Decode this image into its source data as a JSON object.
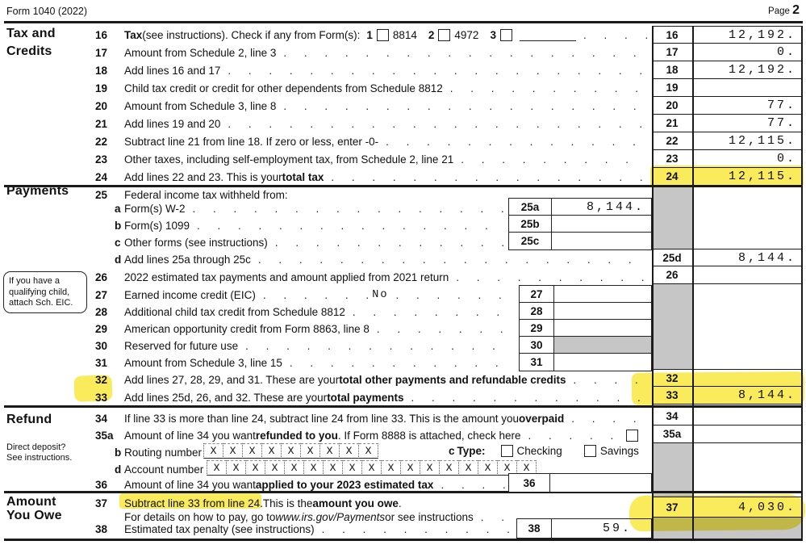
{
  "colors": {
    "highlight": "#f7e425",
    "shade": "#c6c6c6"
  },
  "header": {
    "form": "Form 1040 (2022)",
    "page_word": "Page",
    "page_num": "2"
  },
  "side": {
    "tax1": "Tax and",
    "tax2": "Credits",
    "payments": "Payments",
    "refund": "Refund",
    "owe1": "Amount",
    "owe2": "You Owe",
    "eic_note": "If you have a qualifying child, attach Sch. EIC.",
    "dd1": "Direct deposit?",
    "dd2": "See instructions."
  },
  "rows": {
    "r16": {
      "n": "16",
      "b": "Tax",
      "t": " (see instructions). Check if any from Form(s):",
      "c1": "1",
      "f1": "8814",
      "c2": "2",
      "f2": "4972",
      "c3": "3",
      "rn": "16",
      "rv": "12,192."
    },
    "r17": {
      "n": "17",
      "t": "Amount from Schedule 2, line 3",
      "rn": "17",
      "rv": "0."
    },
    "r18": {
      "n": "18",
      "t": "Add lines 16 and 17",
      "rn": "18",
      "rv": "12,192."
    },
    "r19": {
      "n": "19",
      "t": "Child tax credit or credit for other dependents from Schedule 8812",
      "rn": "19",
      "rv": ""
    },
    "r20": {
      "n": "20",
      "t": "Amount from Schedule 3, line 8",
      "rn": "20",
      "rv": "77."
    },
    "r21": {
      "n": "21",
      "t": "Add lines 19 and 20",
      "rn": "21",
      "rv": "77."
    },
    "r22": {
      "n": "22",
      "t": "Subtract line 21 from line 18. If zero or less, enter -0-",
      "rn": "22",
      "rv": "12,115."
    },
    "r23": {
      "n": "23",
      "t": "Other taxes, including self-employment tax, from Schedule 2, line 21",
      "rn": "23",
      "rv": "0."
    },
    "r24": {
      "n": "24",
      "t": "Add lines 22 and 23. This is your ",
      "b": "total tax",
      "rn": "24",
      "rv": "12,115."
    },
    "r25": {
      "n": "25",
      "t": "Federal income tax withheld from:"
    },
    "r25a": {
      "l": "a",
      "t": "Form(s) W-2",
      "mn": "25a",
      "mv": "8,144."
    },
    "r25b": {
      "l": "b",
      "t": "Form(s) 1099",
      "mn": "25b",
      "mv": ""
    },
    "r25c": {
      "l": "c",
      "t": "Other forms (see instructions)",
      "mn": "25c",
      "mv": ""
    },
    "r25d": {
      "l": "d",
      "t": "Add lines 25a through 25c",
      "rn": "25d",
      "rv": "8,144."
    },
    "r26": {
      "n": "26",
      "t": "2022 estimated tax payments and amount applied from 2021 return",
      "rn": "26",
      "rv": ""
    },
    "r27": {
      "n": "27",
      "t": "Earned income credit (EIC)",
      "note": "No",
      "mn": "27",
      "mv": ""
    },
    "r28": {
      "n": "28",
      "t": "Additional child tax credit from Schedule 8812",
      "mn": "28",
      "mv": ""
    },
    "r29": {
      "n": "29",
      "t": "American opportunity credit from Form 8863, line 8",
      "mn": "29",
      "mv": ""
    },
    "r30": {
      "n": "30",
      "t": "Reserved for future use",
      "mn": "30",
      "mv": ""
    },
    "r31": {
      "n": "31",
      "t": "Amount from Schedule 3, line 15",
      "mn": "31",
      "mv": ""
    },
    "r32": {
      "n": "32",
      "t": "Add lines 27, 28, 29, and 31. These are your ",
      "b": "total other payments and refundable credits",
      "rn": "32",
      "rv": ""
    },
    "r33": {
      "n": "33",
      "t": "Add lines 25d, 26, and 32. These are your ",
      "b": "total payments",
      "rn": "33",
      "rv": "8,144."
    },
    "r34": {
      "n": "34",
      "t": "If line 33 is more than line 24, subtract line 24 from line 33. This is the amount you ",
      "b": "overpaid",
      "rn": "34",
      "rv": ""
    },
    "r35a": {
      "n": "35a",
      "t1": "Amount of line 34 you want ",
      "b": "refunded to you",
      "t2": ". If Form 8888 is attached, check here",
      "rn": "35a",
      "rv": ""
    },
    "r35b": {
      "l": "b",
      "t": "Routing number",
      "cl": "c",
      "ct": " Type:",
      "checking": "Checking",
      "savings": "Savings",
      "digits": [
        "X",
        "X",
        "X",
        "X",
        "X",
        "X",
        "X",
        "X",
        "X"
      ]
    },
    "r35d": {
      "l": "d",
      "t": "Account number",
      "digits": [
        "X",
        "X",
        "X",
        "X",
        "X",
        "X",
        "X",
        "X",
        "X",
        "X",
        "X",
        "X",
        "X",
        "X",
        "X",
        "X",
        "X"
      ]
    },
    "r36": {
      "n": "36",
      "t1": "Amount of line 34 you want ",
      "b": "applied to your 2023 estimated tax",
      "mn": "36",
      "mv": ""
    },
    "r37": {
      "n": "37",
      "hl": "Subtract line 33 from line 24.",
      "t1": " This is the ",
      "b": "amount you owe",
      "t2": ".",
      "l2a": "For details on how to pay, go to ",
      "l2i": "www.irs.gov/Payments",
      "l2b": " or see instructions",
      "rn": "37",
      "rv": "4,030."
    },
    "r38": {
      "n": "38",
      "t": "Estimated tax penalty (see instructions)",
      "mn": "38",
      "mv": "59."
    }
  }
}
